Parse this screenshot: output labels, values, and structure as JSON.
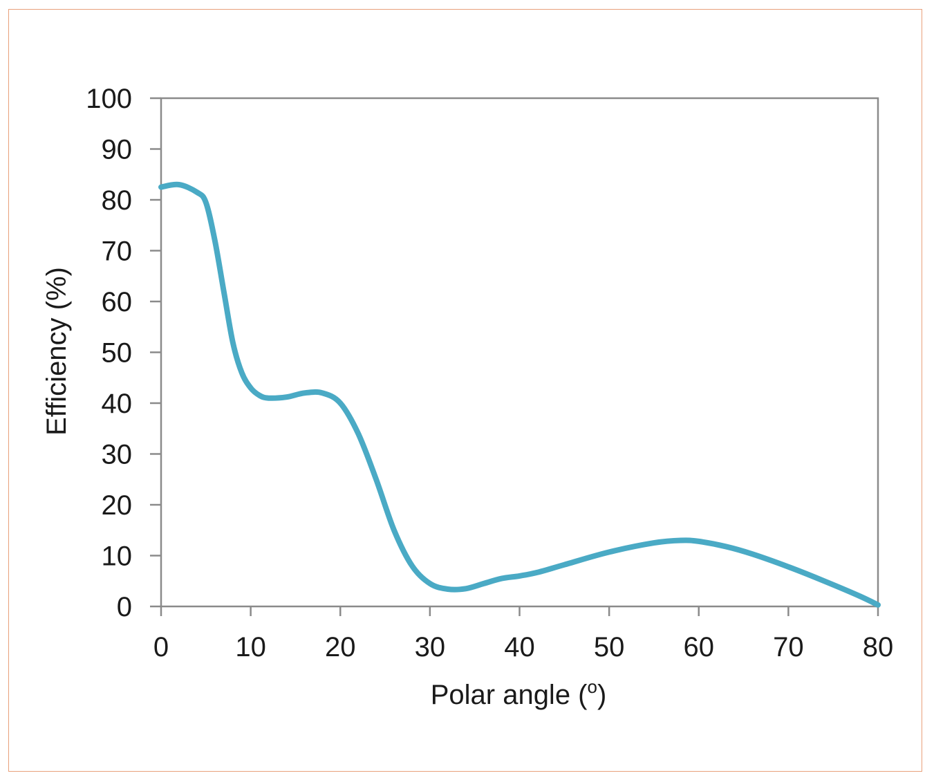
{
  "chart_data": {
    "type": "line",
    "title": "",
    "xlabel": "Polar angle (",
    "xlabel_sup": "o",
    "xlabel_end": ")",
    "ylabel": "Efficiency (%)",
    "xlim": [
      0,
      80
    ],
    "ylim": [
      0,
      100
    ],
    "xticks": [
      0,
      10,
      20,
      30,
      40,
      50,
      60,
      70,
      80
    ],
    "yticks": [
      0,
      10,
      20,
      30,
      40,
      50,
      60,
      70,
      80,
      90,
      100
    ],
    "grid": false,
    "series": [
      {
        "color": "#4aaac5",
        "x": [
          0,
          2,
          4,
          5,
          6,
          7,
          8,
          9,
          10,
          11,
          12,
          14,
          16,
          18,
          20,
          22,
          24,
          26,
          28,
          30,
          32,
          34,
          36,
          38,
          40,
          42,
          45,
          50,
          55,
          58,
          60,
          63,
          66,
          70,
          74,
          78,
          80
        ],
        "y": [
          82.5,
          83,
          81.5,
          79.5,
          72,
          62,
          52,
          46,
          43,
          41.5,
          41,
          41.2,
          42,
          42,
          40,
          34,
          25,
          15,
          8,
          4.5,
          3.4,
          3.5,
          4.5,
          5.5,
          6,
          6.7,
          8.2,
          10.7,
          12.5,
          13,
          12.8,
          11.8,
          10.3,
          7.8,
          5,
          2,
          0.3
        ]
      }
    ]
  }
}
